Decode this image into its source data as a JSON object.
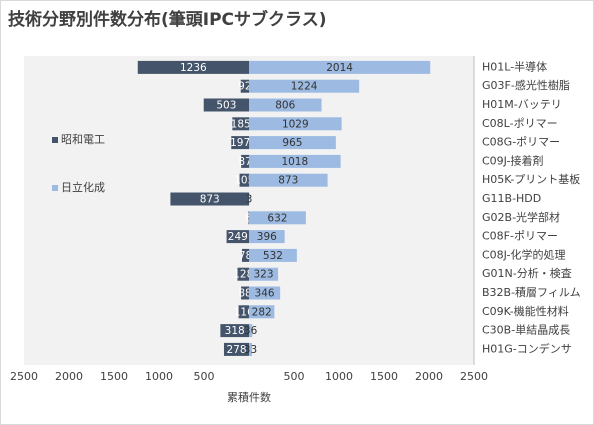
{
  "chart_data": {
    "type": "butterfly-bar",
    "title": "技術分野別件数分布(筆頭IPCサブクラス)",
    "x_label": "累積件数",
    "categories": [
      "H01L-半導体",
      "G03F-感光性樹脂",
      "H01M-バッテリ",
      "C08L-ポリマー",
      "C08G-ポリマー",
      "C09J-接着剤",
      "H05K-プリント基板",
      "G11B-HDD",
      "G02B-光学部材",
      "C08F-ポリマー",
      "C08J-化学的処理",
      "G01N-分析・検査",
      "B32B-積層フィルム",
      "C09K-機能性材料",
      "C30B-単結晶成長",
      "H01G-コンデンサ"
    ],
    "series": [
      {
        "name": "昭和電工",
        "color": "#44546a",
        "side": "left",
        "values": [
          1236,
          92,
          503,
          185,
          197,
          87,
          105,
          873,
          6,
          249,
          78,
          128,
          88,
          116,
          318,
          278
        ]
      },
      {
        "name": "日立化成",
        "color": "#9dbbe2",
        "side": "right",
        "values": [
          2014,
          1224,
          806,
          1029,
          965,
          1018,
          873,
          3,
          632,
          396,
          532,
          323,
          346,
          282,
          36,
          33
        ]
      }
    ],
    "xlim": [
      -2500,
      2500
    ],
    "xticks": [
      {
        "value": -2500,
        "label": "2500"
      },
      {
        "value": -2000,
        "label": "2000"
      },
      {
        "value": -1500,
        "label": "1500"
      },
      {
        "value": -1000,
        "label": "1000"
      },
      {
        "value": -500,
        "label": "500"
      },
      500,
      1000,
      1500,
      2000,
      2500
    ]
  }
}
